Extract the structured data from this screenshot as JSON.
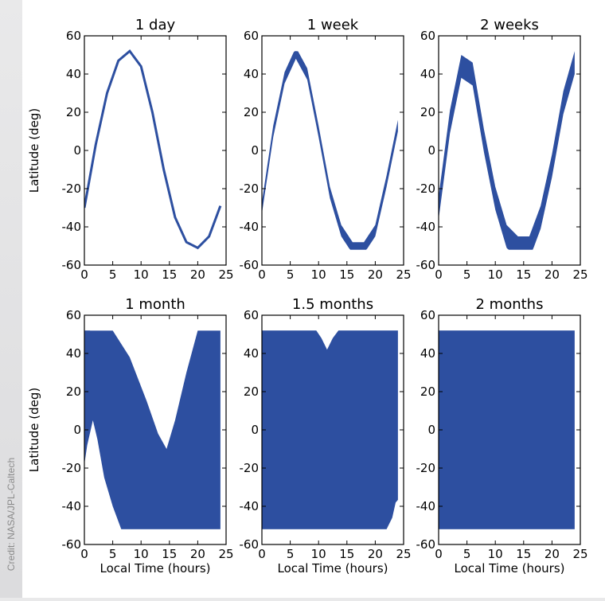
{
  "credit": "Credit: NASA/JPL-Caltech",
  "colors": {
    "swath": "#2d4fa0",
    "frame": "#000000",
    "background": "#ffffff"
  },
  "chart_data": [
    {
      "type": "scatter",
      "title": "1 day",
      "xlabel": "",
      "ylabel": "Latitude (deg)",
      "xlim": [
        0,
        25
      ],
      "ylim": [
        -60,
        60
      ],
      "xticks": [
        0,
        5,
        10,
        15,
        20,
        25
      ],
      "yticks": [
        -60,
        -40,
        -20,
        0,
        20,
        40,
        60
      ],
      "series": [
        {
          "values": [
            [
              0,
              -30
            ],
            [
              2,
              3
            ],
            [
              4,
              30
            ],
            [
              6,
              47
            ],
            [
              8,
              52
            ],
            [
              10,
              44
            ],
            [
              12,
              20
            ],
            [
              14,
              -10
            ],
            [
              16,
              -35
            ],
            [
              18,
              -48
            ],
            [
              20,
              -51
            ],
            [
              22,
              -45
            ],
            [
              24,
              -29
            ]
          ]
        }
      ]
    },
    {
      "type": "scatter",
      "title": "1 week",
      "xlabel": "",
      "ylabel": "",
      "xlim": [
        0,
        25
      ],
      "ylim": [
        -60,
        60
      ],
      "xticks": [
        0,
        5,
        10,
        15,
        20,
        25
      ],
      "yticks": [
        -60,
        -40,
        -20,
        0,
        20,
        40,
        60
      ],
      "series": [
        {
          "values": [
            [
              0,
              -30
            ],
            [
              2,
              10
            ],
            [
              4,
              38
            ],
            [
              6,
              51
            ],
            [
              8,
              40
            ],
            [
              10,
              10
            ],
            [
              12,
              -22
            ],
            [
              14,
              -42
            ],
            [
              16,
              -51
            ],
            [
              18,
              -51
            ],
            [
              20,
              -42
            ],
            [
              22,
              -16
            ],
            [
              24,
              13
            ]
          ]
        }
      ]
    },
    {
      "type": "scatter",
      "title": "2 weeks",
      "xlabel": "",
      "ylabel": "",
      "xlim": [
        0,
        25
      ],
      "ylim": [
        -60,
        60
      ],
      "xticks": [
        0,
        5,
        10,
        15,
        20,
        25
      ],
      "yticks": [
        -60,
        -40,
        -20,
        0,
        20,
        40,
        60
      ],
      "series": [
        {
          "values": [
            [
              0,
              -30
            ],
            [
              2,
              15
            ],
            [
              4,
              44
            ],
            [
              6,
              40
            ],
            [
              8,
              5
            ],
            [
              10,
              -25
            ],
            [
              12,
              -45
            ],
            [
              14,
              -51
            ],
            [
              16,
              -51
            ],
            [
              18,
              -35
            ],
            [
              20,
              -8
            ],
            [
              22,
              25
            ],
            [
              24,
              46
            ]
          ]
        }
      ]
    },
    {
      "type": "scatter",
      "title": "1 month",
      "xlabel": "Local Time (hours)",
      "ylabel": "Latitude (deg)",
      "xlim": [
        0,
        25
      ],
      "ylim": [
        -60,
        60
      ],
      "xticks": [
        0,
        5,
        10,
        15,
        20,
        25
      ],
      "yticks": [
        -60,
        -40,
        -20,
        0,
        20,
        40,
        60
      ],
      "series": [
        {
          "values": [
            [
              0,
              -52
            ],
            [
              24,
              52
            ]
          ]
        }
      ]
    },
    {
      "type": "scatter",
      "title": "1.5 months",
      "xlabel": "Local Time (hours)",
      "ylabel": "",
      "xlim": [
        0,
        25
      ],
      "ylim": [
        -60,
        60
      ],
      "xticks": [
        0,
        5,
        10,
        15,
        20,
        25
      ],
      "yticks": [
        -60,
        -40,
        -20,
        0,
        20,
        40,
        60
      ],
      "series": [
        {
          "values": [
            [
              0,
              -52
            ],
            [
              24,
              52
            ]
          ]
        }
      ]
    },
    {
      "type": "scatter",
      "title": "2 months",
      "xlabel": "Local Time (hours)",
      "ylabel": "",
      "xlim": [
        0,
        25
      ],
      "ylim": [
        -60,
        60
      ],
      "xticks": [
        0,
        5,
        10,
        15,
        20,
        25
      ],
      "yticks": [
        -60,
        -40,
        -20,
        0,
        20,
        40,
        60
      ],
      "series": [
        {
          "values": [
            [
              0,
              -52
            ],
            [
              24,
              52
            ]
          ]
        }
      ]
    }
  ]
}
